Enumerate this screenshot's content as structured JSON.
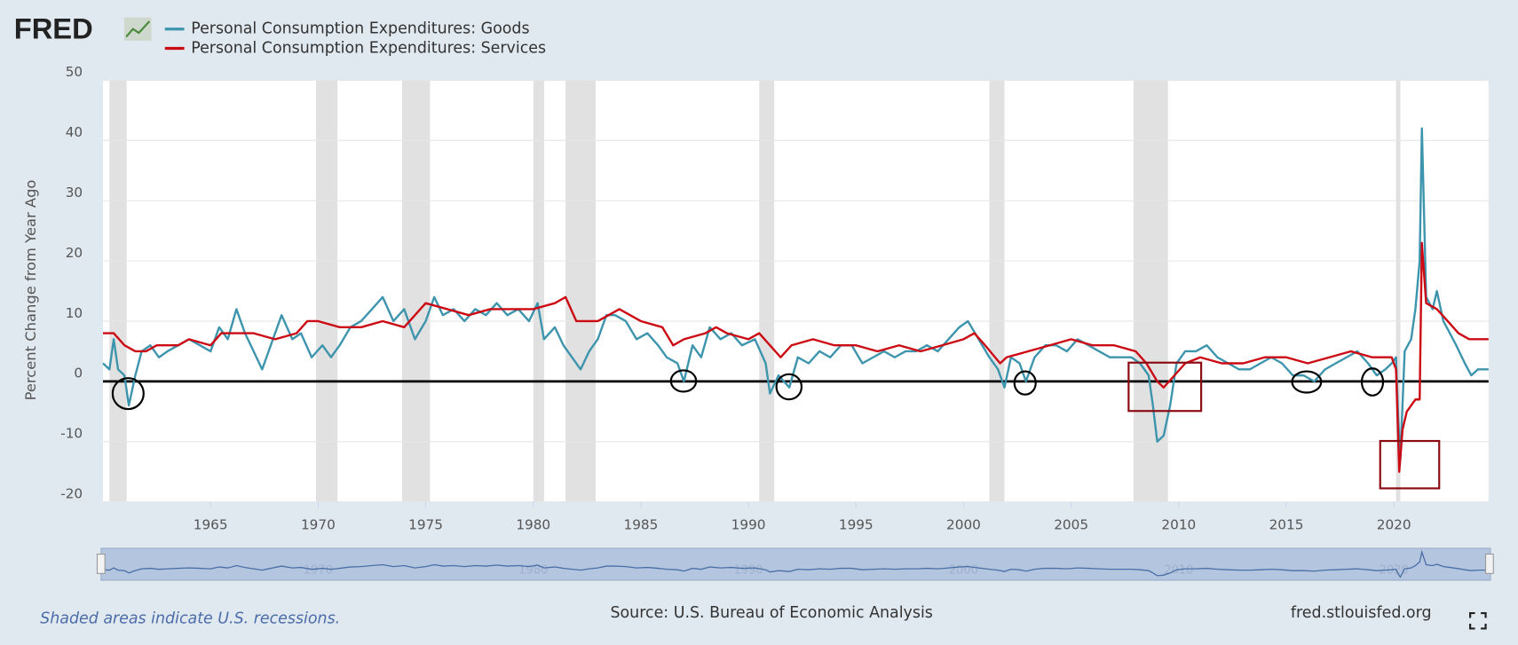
{
  "logo": "FRED",
  "chart_data": {
    "type": "line",
    "ylabel": "Percent Change from Year Ago",
    "xlim": [
      1960,
      2024.4
    ],
    "ylim": [
      -20,
      50
    ],
    "xticks": [
      1965,
      1970,
      1975,
      1980,
      1985,
      1990,
      1995,
      2000,
      2005,
      2010,
      2015,
      2020
    ],
    "yticks": [
      -20,
      -10,
      0,
      10,
      20,
      30,
      40,
      50
    ],
    "grid": true,
    "recessions": [
      [
        1960.3,
        1961.1
      ],
      [
        1969.9,
        1970.9
      ],
      [
        1973.9,
        1975.2
      ],
      [
        1980.0,
        1980.5
      ],
      [
        1981.5,
        1982.9
      ],
      [
        1990.5,
        1991.2
      ],
      [
        2001.2,
        2001.9
      ],
      [
        2007.9,
        2009.5
      ],
      [
        2020.1,
        2020.3
      ]
    ],
    "recession_note": "Shaded areas indicate U.S. recessions.",
    "source": "Source: U.S. Bureau of Economic Analysis",
    "site": "fred.stlouisfed.org",
    "navigator_xticks": [
      1970,
      1980,
      1990,
      2000,
      2010,
      2020
    ],
    "series": [
      {
        "name": "Personal Consumption Expenditures: Goods",
        "color": "#3d94ad",
        "x": [
          1960.0,
          1960.3,
          1960.5,
          1960.7,
          1961.0,
          1961.2,
          1961.5,
          1961.8,
          1962.2,
          1962.6,
          1963.0,
          1963.5,
          1964.0,
          1964.5,
          1965.0,
          1965.4,
          1965.8,
          1966.2,
          1966.6,
          1967.0,
          1967.4,
          1967.8,
          1968.3,
          1968.8,
          1969.2,
          1969.7,
          1970.2,
          1970.6,
          1971.0,
          1971.5,
          1972.0,
          1972.5,
          1973.0,
          1973.5,
          1974.0,
          1974.5,
          1975.0,
          1975.4,
          1975.8,
          1976.3,
          1976.8,
          1977.3,
          1977.8,
          1978.3,
          1978.8,
          1979.3,
          1979.8,
          1980.2,
          1980.5,
          1981.0,
          1981.4,
          1981.8,
          1982.2,
          1982.6,
          1983.0,
          1983.4,
          1983.8,
          1984.3,
          1984.8,
          1985.3,
          1985.8,
          1986.2,
          1986.7,
          1987.0,
          1987.4,
          1987.8,
          1988.2,
          1988.7,
          1989.2,
          1989.7,
          1990.3,
          1990.8,
          1991.0,
          1991.4,
          1991.9,
          1992.3,
          1992.8,
          1993.3,
          1993.8,
          1994.3,
          1994.8,
          1995.3,
          1995.8,
          1996.3,
          1996.8,
          1997.3,
          1997.8,
          1998.3,
          1998.8,
          1999.3,
          1999.8,
          2000.2,
          2000.7,
          2001.2,
          2001.6,
          2001.9,
          2002.2,
          2002.6,
          2002.9,
          2003.3,
          2003.8,
          2004.3,
          2004.8,
          2005.3,
          2005.8,
          2006.3,
          2006.8,
          2007.3,
          2007.8,
          2008.2,
          2008.6,
          2008.8,
          2009.0,
          2009.3,
          2009.6,
          2009.9,
          2010.3,
          2010.8,
          2011.3,
          2011.8,
          2012.3,
          2012.8,
          2013.3,
          2013.8,
          2014.3,
          2014.8,
          2015.3,
          2015.8,
          2016.3,
          2016.8,
          2017.3,
          2017.8,
          2018.3,
          2018.8,
          2019.2,
          2019.6,
          2019.9,
          2020.1,
          2020.2,
          2020.3,
          2020.5,
          2020.8,
          2021.0,
          2021.2,
          2021.3,
          2021.5,
          2021.8,
          2022.0,
          2022.3,
          2022.6,
          2022.9,
          2023.3,
          2023.6,
          2023.9,
          2024.2,
          2024.4
        ],
        "values": [
          3,
          2,
          7,
          2,
          1,
          -4,
          1,
          5,
          6,
          4,
          5,
          6,
          7,
          6,
          5,
          9,
          7,
          12,
          8,
          5,
          2,
          6,
          11,
          7,
          8,
          4,
          6,
          4,
          6,
          9,
          10,
          12,
          14,
          10,
          12,
          7,
          10,
          14,
          11,
          12,
          10,
          12,
          11,
          13,
          11,
          12,
          10,
          13,
          7,
          9,
          6,
          4,
          2,
          5,
          7,
          11,
          11,
          10,
          7,
          8,
          6,
          4,
          3,
          0,
          6,
          4,
          9,
          7,
          8,
          6,
          7,
          3,
          -2,
          1,
          -1,
          4,
          3,
          5,
          4,
          6,
          6,
          3,
          4,
          5,
          4,
          5,
          5,
          6,
          5,
          7,
          9,
          10,
          7,
          4,
          2,
          -1,
          4,
          3,
          0,
          4,
          6,
          6,
          5,
          7,
          6,
          5,
          4,
          4,
          4,
          3,
          1,
          -4,
          -10,
          -9,
          -4,
          3,
          5,
          5,
          6,
          4,
          3,
          2,
          2,
          3,
          4,
          3,
          1,
          1,
          0,
          2,
          3,
          4,
          5,
          3,
          1,
          2,
          3,
          4,
          -6,
          -13,
          5,
          7,
          12,
          20,
          42,
          14,
          12,
          15,
          10,
          8,
          6,
          3,
          1,
          2,
          2,
          2
        ]
      },
      {
        "name": "Personal Consumption Expenditures: Services",
        "color": "#cc0a14",
        "x": [
          1960.0,
          1960.5,
          1961.0,
          1961.5,
          1962.0,
          1962.5,
          1963.0,
          1963.5,
          1964.0,
          1965.0,
          1965.5,
          1966.0,
          1967.0,
          1968.0,
          1969.0,
          1969.5,
          1970.0,
          1971.0,
          1972.0,
          1973.0,
          1974.0,
          1975.0,
          1976.0,
          1977.0,
          1978.0,
          1979.0,
          1980.0,
          1981.0,
          1981.5,
          1982.0,
          1983.0,
          1984.0,
          1984.5,
          1985.0,
          1986.0,
          1986.5,
          1987.0,
          1988.0,
          1988.5,
          1989.0,
          1990.0,
          1990.5,
          1991.0,
          1991.5,
          1992.0,
          1993.0,
          1994.0,
          1995.0,
          1996.0,
          1997.0,
          1998.0,
          1999.0,
          2000.0,
          2000.5,
          2001.0,
          2001.7,
          2002.0,
          2003.0,
          2004.0,
          2005.0,
          2006.0,
          2007.0,
          2008.0,
          2008.5,
          2009.0,
          2009.3,
          2009.8,
          2010.3,
          2011.0,
          2012.0,
          2013.0,
          2014.0,
          2015.0,
          2016.0,
          2017.0,
          2018.0,
          2019.0,
          2019.9,
          2020.1,
          2020.25,
          2020.4,
          2020.6,
          2021.0,
          2021.2,
          2021.3,
          2021.5,
          2022.0,
          2022.5,
          2023.0,
          2023.5,
          2024.0,
          2024.4
        ],
        "values": [
          8,
          8,
          6,
          5,
          5,
          6,
          6,
          6,
          7,
          6,
          8,
          8,
          8,
          7,
          8,
          10,
          10,
          9,
          9,
          10,
          9,
          13,
          12,
          11,
          12,
          12,
          12,
          13,
          14,
          10,
          10,
          12,
          11,
          10,
          9,
          6,
          7,
          8,
          9,
          8,
          7,
          8,
          6,
          4,
          6,
          7,
          6,
          6,
          5,
          6,
          5,
          6,
          7,
          8,
          6,
          3,
          4,
          5,
          6,
          7,
          6,
          6,
          5,
          3,
          0,
          -1,
          1,
          3,
          4,
          3,
          3,
          4,
          4,
          3,
          4,
          5,
          4,
          4,
          2,
          -15,
          -8,
          -5,
          -3,
          -3,
          23,
          13,
          12,
          10,
          8,
          7,
          7,
          7
        ]
      }
    ]
  }
}
